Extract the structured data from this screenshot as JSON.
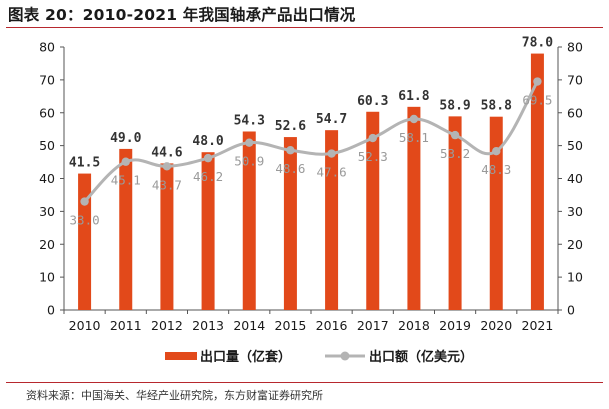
{
  "title": "图表 20：2010-2021 年我国轴承产品出口情况",
  "source": "资料来源：中国海关、华经产业研究院，东方财富证券研究所",
  "colors": {
    "bar": "#e2491a",
    "line": "#b4b4b4",
    "axis": "#555555",
    "accent": "#b7282e"
  },
  "chart_data": {
    "type": "bar+line",
    "categories": [
      "2010",
      "2011",
      "2012",
      "2013",
      "2014",
      "2015",
      "2016",
      "2017",
      "2018",
      "2019",
      "2020",
      "2021"
    ],
    "series": [
      {
        "name": "出口量（亿套）",
        "type": "bar",
        "axis": "left",
        "values": [
          41.5,
          49.0,
          44.6,
          48.0,
          54.3,
          52.6,
          54.7,
          60.3,
          61.8,
          58.9,
          58.8,
          78.0
        ],
        "labels": [
          "41.5",
          "49.0",
          "44.6",
          "48.0",
          "54.3",
          "52.6",
          "54.7",
          "60.3",
          "61.8",
          "58.9",
          "58.8",
          "78.0"
        ]
      },
      {
        "name": "出口额（亿美元）",
        "type": "line",
        "axis": "right",
        "values": [
          33.0,
          45.1,
          43.7,
          46.2,
          50.9,
          48.6,
          47.6,
          52.3,
          58.1,
          53.2,
          48.3,
          69.5
        ],
        "labels": [
          "33.0",
          "45.1",
          "43.7",
          "46.2",
          "50.9",
          "48.6",
          "47.6",
          "52.3",
          "58.1",
          "53.2",
          "48.3",
          "69.5"
        ]
      }
    ],
    "y_left": {
      "range": [
        0,
        80
      ],
      "ticks": [
        "0",
        "10",
        "20",
        "30",
        "40",
        "50",
        "60",
        "70",
        "80"
      ]
    },
    "y_right": {
      "range": [
        0,
        80
      ],
      "ticks": [
        "0",
        "10",
        "20",
        "30",
        "40",
        "50",
        "60",
        "70",
        "80"
      ]
    },
    "grid": false,
    "legend_position": "bottom"
  }
}
